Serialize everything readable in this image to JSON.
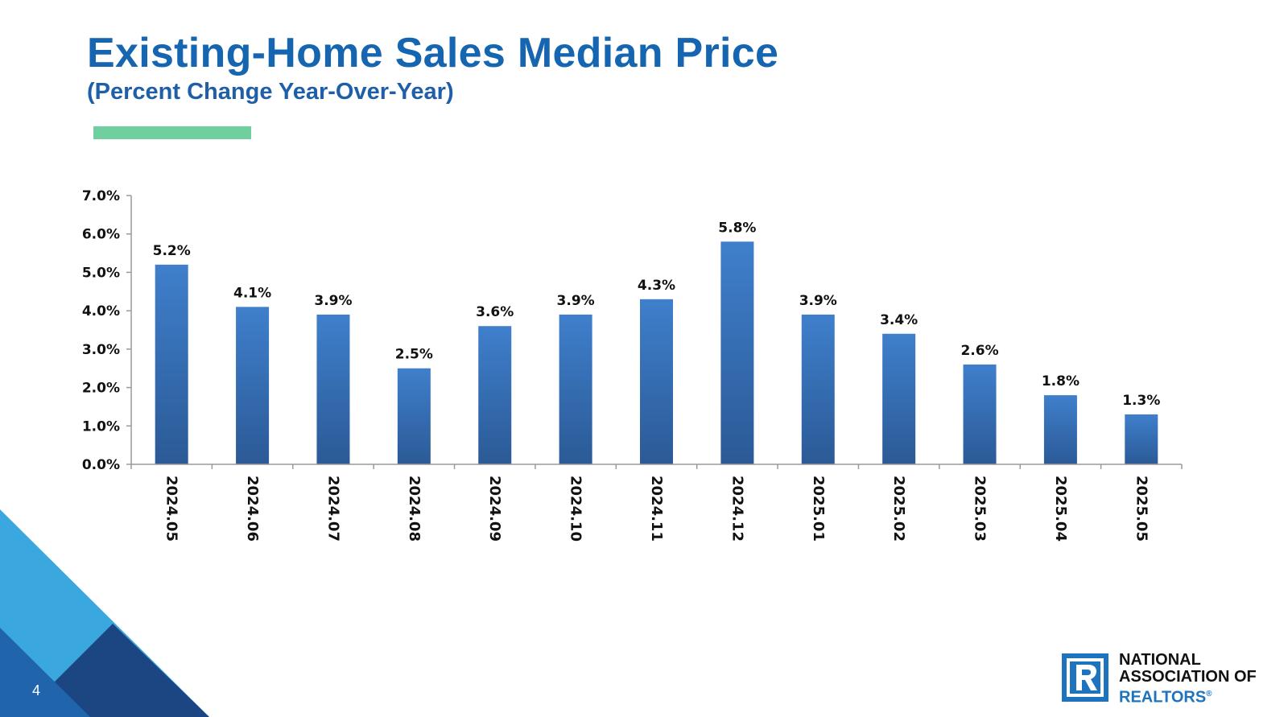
{
  "header": {
    "title": "Existing-Home Sales Median Price",
    "subtitle": "(Percent Change Year-Over-Year)"
  },
  "chart_data": {
    "type": "bar",
    "categories": [
      "2024.05",
      "2024.06",
      "2024.07",
      "2024.08",
      "2024.09",
      "2024.10",
      "2024.11",
      "2024.12",
      "2025.01",
      "2025.02",
      "2025.03",
      "2025.04",
      "2025.05"
    ],
    "values": [
      5.2,
      4.1,
      3.9,
      2.5,
      3.6,
      3.9,
      4.3,
      5.8,
      3.9,
      3.4,
      2.6,
      1.8,
      1.3
    ],
    "value_labels": [
      "5.2%",
      "4.1%",
      "3.9%",
      "2.5%",
      "3.6%",
      "3.9%",
      "4.3%",
      "5.8%",
      "3.9%",
      "3.4%",
      "2.6%",
      "1.8%",
      "1.3%"
    ],
    "yticks": [
      0,
      1,
      2,
      3,
      4,
      5,
      6,
      7
    ],
    "ytick_labels": [
      "0.0%",
      "1.0%",
      "2.0%",
      "3.0%",
      "4.0%",
      "5.0%",
      "6.0%",
      "7.0%"
    ],
    "ylim": [
      0,
      7
    ],
    "grid": false,
    "legend": "none",
    "bar_color_top": "#3f7fcc",
    "bar_color_bottom": "#2b5a96"
  },
  "footer": {
    "page_number": "4",
    "logo": {
      "line1": "NATIONAL",
      "line2": "ASSOCIATION OF",
      "line3": "REALTORS",
      "registered": "®",
      "color": "#1e73be"
    }
  },
  "colors": {
    "title": "#1565b0",
    "accent_rule": "#6fcf9f",
    "corner_light": "#3aa7de",
    "corner_dark": "#1b4682"
  }
}
